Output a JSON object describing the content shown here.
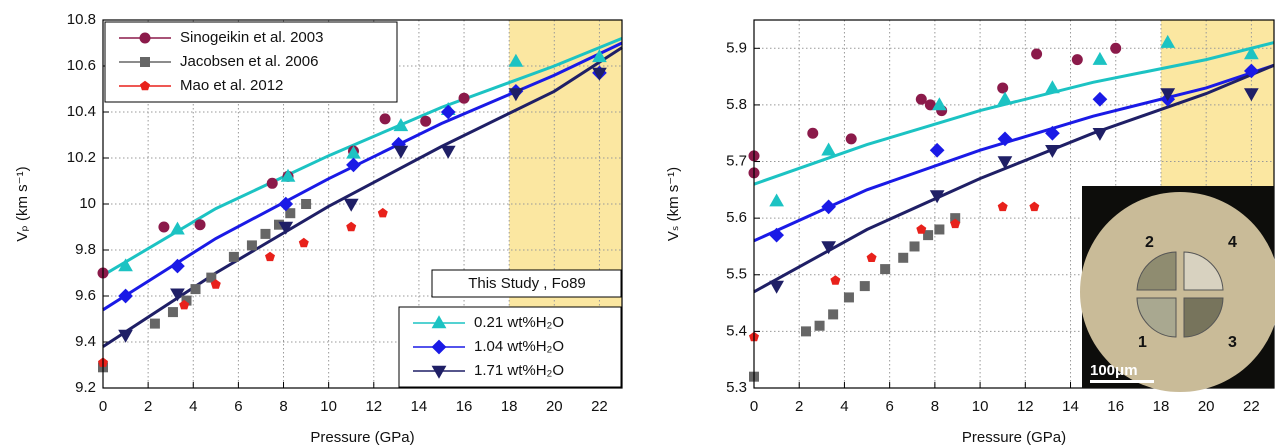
{
  "chart_data": [
    {
      "type": "scatter",
      "ylabel": "Vₚ (km s⁻¹)",
      "xlabel": "Pressure (GPa)",
      "xlim": [
        0,
        23
      ],
      "ylim": [
        9.2,
        10.8
      ],
      "xticks": [
        0,
        2,
        4,
        6,
        8,
        10,
        12,
        14,
        16,
        18,
        20,
        22
      ],
      "yticks": [
        9.2,
        9.4,
        9.6,
        9.8,
        10,
        10.2,
        10.4,
        10.6,
        10.8
      ],
      "grid": true,
      "shade": [
        18,
        23
      ],
      "shade_color": "#fbe7a1",
      "legend": "upper left",
      "series": [
        {
          "name": "Sinogeikin et al. 2003",
          "color": "#8b1a4a",
          "marker": "circle",
          "x": [
            0,
            2.7,
            4.3,
            7.5,
            8.2,
            11.1,
            12.5,
            14.3,
            16.0
          ],
          "values": [
            9.7,
            9.9,
            9.91,
            10.09,
            10.12,
            10.23,
            10.37,
            10.36,
            10.46
          ]
        },
        {
          "name": "Jacobsen et al. 2006",
          "color": "#666666",
          "marker": "square",
          "x": [
            0,
            2.3,
            3.1,
            3.7,
            4.1,
            4.8,
            5.8,
            6.6,
            7.2,
            7.8,
            8.3,
            9.0
          ],
          "values": [
            9.29,
            9.48,
            9.53,
            9.58,
            9.63,
            9.68,
            9.77,
            9.82,
            9.87,
            9.91,
            9.96,
            10.0
          ]
        },
        {
          "name": "Mao et al. 2012",
          "color": "#e8211b",
          "marker": "pentagon",
          "x": [
            0,
            3.6,
            5.0,
            7.4,
            8.9,
            11.0,
            12.4
          ],
          "values": [
            9.31,
            9.56,
            9.65,
            9.77,
            9.83,
            9.9,
            9.96
          ]
        }
      ],
      "study": {
        "annotation": "This Study , Fo89",
        "legend": "lower right",
        "series": [
          {
            "name": "0.21 wt%H₂O",
            "color": "#1cc3c3",
            "marker": "triangle-up",
            "x": [
              1,
              3.3,
              8.2,
              11.1,
              13.2,
              15.3,
              18.3,
              22
            ],
            "values": [
              9.73,
              9.89,
              10.12,
              10.22,
              10.34,
              10.41,
              10.62,
              10.64
            ],
            "fit_x": [
              0,
              5,
              10,
              15,
              20,
              23
            ],
            "fit_values": [
              9.69,
              9.98,
              10.21,
              10.42,
              10.6,
              10.72
            ]
          },
          {
            "name": "1.04 wt%H₂O",
            "color": "#1a1ae6",
            "marker": "diamond",
            "x": [
              1,
              3.3,
              8.1,
              11.1,
              13.1,
              15.3,
              18.3,
              22
            ],
            "values": [
              9.6,
              9.73,
              10.0,
              10.17,
              10.26,
              10.4,
              10.49,
              10.57
            ],
            "fit_x": [
              0,
              5,
              10,
              15,
              20,
              23
            ],
            "fit_values": [
              9.54,
              9.85,
              10.11,
              10.35,
              10.56,
              10.7
            ]
          },
          {
            "name": "1.71 wt%H₂O",
            "color": "#1f1f66",
            "marker": "triangle-down",
            "x": [
              1,
              3.3,
              8.1,
              11.0,
              13.2,
              15.3,
              18.3,
              22
            ],
            "values": [
              9.43,
              9.61,
              9.9,
              10.0,
              10.23,
              10.23,
              10.48,
              10.57
            ],
            "fit_x": [
              0,
              5,
              10,
              15,
              20,
              23
            ],
            "fit_values": [
              9.38,
              9.7,
              9.99,
              10.25,
              10.49,
              10.68
            ]
          }
        ]
      }
    },
    {
      "type": "scatter",
      "ylabel": "Vₛ (km s⁻¹)",
      "xlabel": "Pressure (GPa)",
      "xlim": [
        0,
        23
      ],
      "ylim": [
        5.3,
        5.95
      ],
      "xticks": [
        0,
        2,
        4,
        6,
        8,
        10,
        12,
        14,
        16,
        18,
        20,
        22
      ],
      "yticks": [
        5.3,
        5.4,
        5.5,
        5.6,
        5.7,
        5.8,
        5.9
      ],
      "grid": true,
      "shade": [
        18,
        23
      ],
      "shade_color": "#fbe7a1",
      "series": [
        {
          "name": "Sinogeikin et al. 2003",
          "color": "#8b1a4a",
          "marker": "circle",
          "x": [
            0,
            0,
            2.6,
            4.3,
            7.4,
            7.8,
            8.3,
            11.0,
            12.5,
            14.3,
            16.0
          ],
          "values": [
            5.68,
            5.71,
            5.75,
            5.74,
            5.81,
            5.8,
            5.79,
            5.83,
            5.89,
            5.88,
            5.9
          ]
        },
        {
          "name": "Jacobsen et al. 2006",
          "color": "#666666",
          "marker": "square",
          "x": [
            0,
            2.3,
            2.9,
            3.5,
            4.2,
            4.9,
            5.8,
            6.6,
            7.1,
            7.7,
            8.2,
            8.9
          ],
          "values": [
            5.32,
            5.4,
            5.41,
            5.43,
            5.46,
            5.48,
            5.51,
            5.53,
            5.55,
            5.57,
            5.58,
            5.6
          ]
        },
        {
          "name": "Mao et al. 2012",
          "color": "#e8211b",
          "marker": "pentagon",
          "x": [
            0,
            3.6,
            5.2,
            7.4,
            8.9,
            11.0,
            12.4
          ],
          "values": [
            5.39,
            5.49,
            5.53,
            5.58,
            5.59,
            5.62,
            5.62
          ]
        }
      ],
      "study": {
        "series": [
          {
            "name": "0.21 wt%H₂O",
            "color": "#1cc3c3",
            "marker": "triangle-up",
            "x": [
              1,
              3.3,
              8.2,
              11.1,
              13.2,
              15.3,
              18.3,
              22
            ],
            "values": [
              5.63,
              5.72,
              5.8,
              5.81,
              5.83,
              5.88,
              5.91,
              5.89
            ],
            "fit_x": [
              0,
              5,
              10,
              15,
              20,
              23
            ],
            "fit_values": [
              5.66,
              5.73,
              5.79,
              5.84,
              5.88,
              5.91
            ]
          },
          {
            "name": "1.04 wt%H₂O",
            "color": "#1a1ae6",
            "marker": "diamond",
            "x": [
              1,
              3.3,
              8.1,
              11.1,
              13.2,
              15.3,
              18.3,
              22
            ],
            "values": [
              5.57,
              5.62,
              5.72,
              5.74,
              5.75,
              5.81,
              5.81,
              5.86
            ],
            "fit_x": [
              0,
              5,
              10,
              15,
              20,
              23
            ],
            "fit_values": [
              5.56,
              5.65,
              5.72,
              5.78,
              5.83,
              5.87
            ]
          },
          {
            "name": "1.71 wt%H₂O",
            "color": "#1f1f66",
            "marker": "triangle-down",
            "x": [
              1,
              3.3,
              8.1,
              11.1,
              13.2,
              15.3,
              18.3,
              22
            ],
            "values": [
              5.48,
              5.55,
              5.64,
              5.7,
              5.72,
              5.75,
              5.82,
              5.82
            ],
            "fit_x": [
              0,
              5,
              10,
              15,
              20,
              23
            ],
            "fit_values": [
              5.47,
              5.58,
              5.67,
              5.75,
              5.82,
              5.87
            ]
          }
        ]
      },
      "inset": {
        "labels": [
          "2",
          "4",
          "1",
          "3"
        ],
        "scale_bar": "100μm"
      }
    }
  ]
}
